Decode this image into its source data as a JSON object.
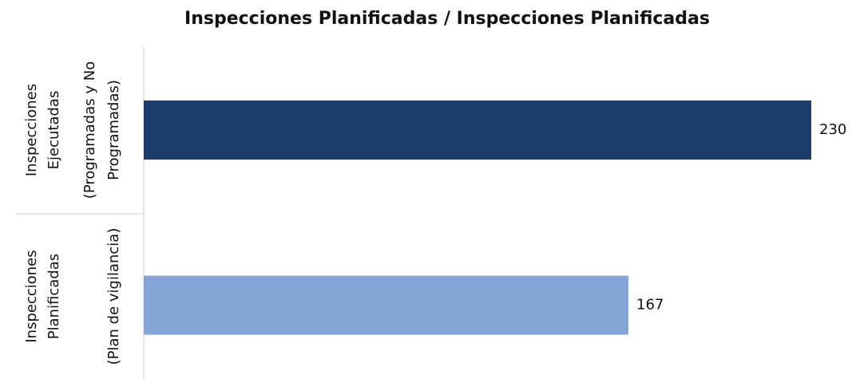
{
  "chart_data": {
    "type": "hbar",
    "title": "Inspecciones Planificadas / Inspecciones Planificadas",
    "categories": [
      [
        [
          "Inspecciones",
          "Ejecutadas"
        ],
        [
          "(Programadas y No",
          "Programadas)"
        ]
      ],
      [
        [
          "Inspecciones",
          "Planificadas"
        ],
        [
          "(Plan de vigilancia)"
        ]
      ]
    ],
    "values": [
      230,
      167
    ],
    "colors": [
      "#1c3d6b",
      "#84a5d6"
    ]
  }
}
